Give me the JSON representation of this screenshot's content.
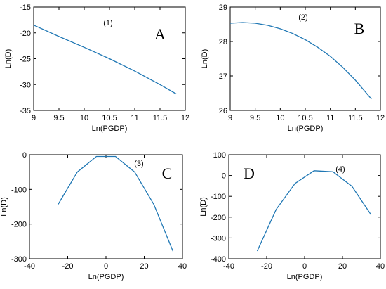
{
  "chart_data": [
    {
      "type": "line",
      "panel": "A",
      "annotation": "(1)",
      "xlabel": "Ln(PGDP)",
      "ylabel": "Ln(D)",
      "xlim": [
        9,
        12
      ],
      "ylim": [
        -35,
        -15
      ],
      "xticks": [
        9,
        9.5,
        10,
        10.5,
        11,
        11.5,
        12
      ],
      "xtick_labels": [
        "9",
        "9.5",
        "10",
        "10.5",
        "11",
        "11.5",
        "12"
      ],
      "yticks": [
        -35,
        -30,
        -25,
        -20,
        -15
      ],
      "ytick_labels": [
        "-35",
        "-30",
        "-25",
        "-20",
        "-15"
      ],
      "x": [
        9.0,
        9.5,
        10.0,
        10.5,
        11.0,
        11.5,
        11.82
      ],
      "y": [
        -18.5,
        -20.7,
        -22.8,
        -25.0,
        -27.4,
        -30.0,
        -31.8
      ]
    },
    {
      "type": "line",
      "panel": "B",
      "annotation": "(2)",
      "xlabel": "Ln(PGDP)",
      "ylabel": "Ln(D)",
      "xlim": [
        9,
        12
      ],
      "ylim": [
        26,
        29
      ],
      "xticks": [
        9,
        9.5,
        10,
        10.5,
        11,
        11.5,
        12
      ],
      "xtick_labels": [
        "9",
        "9.5",
        "10",
        "10.5",
        "11",
        "11.5",
        "12"
      ],
      "yticks": [
        26,
        27,
        28,
        29
      ],
      "ytick_labels": [
        "26",
        "27",
        "28",
        "29"
      ],
      "x": [
        9.0,
        9.25,
        9.5,
        9.75,
        10.0,
        10.25,
        10.5,
        10.75,
        11.0,
        11.25,
        11.5,
        11.82
      ],
      "y": [
        28.53,
        28.55,
        28.53,
        28.47,
        28.37,
        28.23,
        28.05,
        27.83,
        27.57,
        27.25,
        26.88,
        26.33
      ]
    },
    {
      "type": "line",
      "panel": "C",
      "annotation": "(3)",
      "xlabel": "Ln(PGDP)",
      "ylabel": "Ln(D)",
      "xlim": [
        -40,
        40
      ],
      "ylim": [
        -300,
        0
      ],
      "xticks": [
        -40,
        -20,
        0,
        20,
        40
      ],
      "xtick_labels": [
        "-40",
        "-20",
        "0",
        "20",
        "40"
      ],
      "yticks": [
        -300,
        -200,
        -100,
        0
      ],
      "ytick_labels": [
        "-300",
        "-200",
        "-100",
        "0"
      ],
      "x": [
        -25,
        -15,
        -5,
        5,
        15,
        25,
        35
      ],
      "y": [
        -143,
        -50,
        -5,
        -5,
        -50,
        -143,
        -278
      ]
    },
    {
      "type": "line",
      "panel": "D",
      "annotation": "(4)",
      "xlabel": "Ln(PGDP)",
      "ylabel": "Ln(D)",
      "xlim": [
        -40,
        40
      ],
      "ylim": [
        -400,
        100
      ],
      "xticks": [
        -40,
        -20,
        0,
        20,
        40
      ],
      "xtick_labels": [
        "-40",
        "-20",
        "0",
        "20",
        "40"
      ],
      "yticks": [
        -400,
        -300,
        -200,
        -100,
        0,
        100
      ],
      "ytick_labels": [
        "-400",
        "-300",
        "-200",
        "-100",
        "0",
        "100"
      ],
      "x": [
        -25,
        -15,
        -5,
        5,
        15,
        25,
        35
      ],
      "y": [
        -363,
        -163,
        -38,
        23,
        18,
        -52,
        -188
      ]
    }
  ]
}
